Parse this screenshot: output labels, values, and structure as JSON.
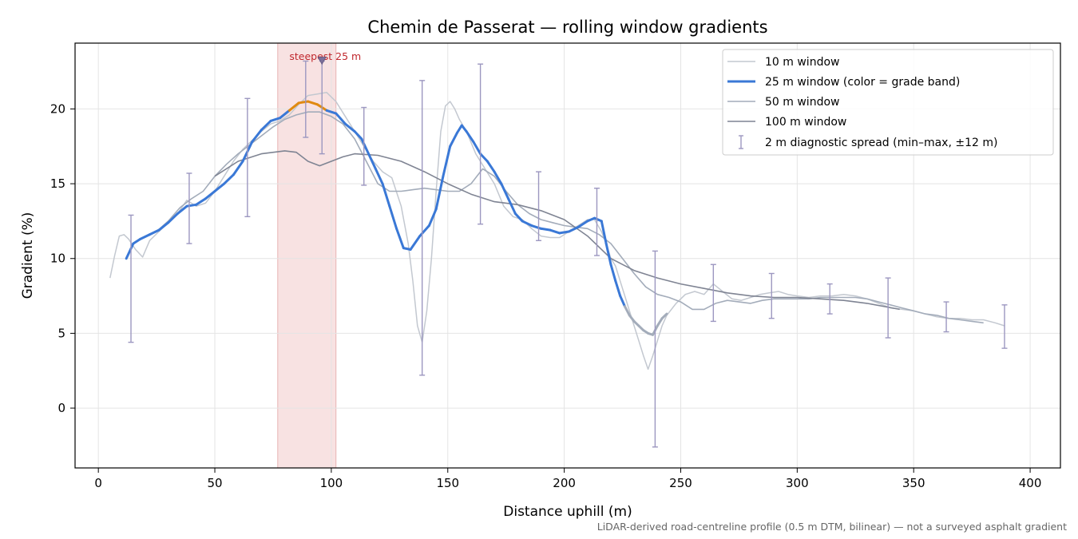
{
  "chart_data": {
    "type": "line",
    "title": "Chemin de Passerat — rolling window gradients",
    "xlabel": "Distance uphill (m)",
    "ylabel": "Gradient (%)",
    "xlim": [
      -10,
      413
    ],
    "ylim": [
      -4,
      24.4
    ],
    "x_ticks": [
      "0",
      "50",
      "100",
      "150",
      "200",
      "250",
      "300",
      "350",
      "400"
    ],
    "y_ticks": [
      "0",
      "5",
      "10",
      "15",
      "20"
    ],
    "grid": true,
    "legend_position": "top-right",
    "footnote": "LiDAR-derived road-centreline profile (0.5 m DTM, bilinear) — not a surveyed asphalt gradient",
    "steepest_window": {
      "label": "steepest 25 m",
      "x_start": 77,
      "x_end": 102,
      "marker_x": 96,
      "marker_y": 23.2
    },
    "colors": {
      "w10": "#c3c8d0",
      "w25": "#3a78d6",
      "w25_high": "#e08a10",
      "w50": "#a3acba",
      "w100": "#7f8493",
      "spread": "#9c97c0",
      "highlight": "#f6d8d8"
    },
    "series": [
      {
        "name": "10 m window",
        "x": [
          5,
          7,
          9,
          11,
          13,
          16,
          19,
          22,
          26,
          30,
          34,
          38,
          42,
          46,
          50,
          54,
          58,
          62,
          66,
          70,
          74,
          78,
          82,
          86,
          90,
          94,
          98,
          102,
          106,
          110,
          114,
          118,
          122,
          126,
          130,
          133,
          135,
          137,
          139,
          141,
          143,
          145,
          147,
          149,
          151,
          153,
          155,
          158,
          162,
          166,
          170,
          174,
          178,
          182,
          186,
          190,
          194,
          198,
          202,
          206,
          210,
          213,
          216,
          218,
          220,
          222,
          224,
          226,
          228,
          230,
          232,
          234,
          236,
          238,
          240,
          242,
          244,
          248,
          252,
          256,
          260,
          264,
          268,
          272,
          276,
          280,
          284,
          288,
          292,
          296,
          300,
          305,
          310,
          315,
          320,
          325,
          330,
          335,
          340,
          345,
          350,
          355,
          360,
          365,
          370,
          375,
          380,
          385,
          389
        ],
        "y": [
          8.7,
          10.2,
          11.5,
          11.6,
          11.3,
          10.6,
          10.1,
          11.2,
          11.8,
          12.4,
          13.0,
          13.9,
          13.5,
          13.7,
          14.5,
          15.5,
          16.5,
          17.3,
          17.9,
          18.5,
          19.0,
          19.2,
          19.6,
          20.3,
          20.9,
          21.0,
          21.1,
          20.5,
          19.5,
          18.5,
          17.5,
          16.5,
          15.8,
          15.4,
          13.5,
          11.0,
          8.5,
          5.5,
          4.4,
          6.5,
          10.0,
          14.5,
          18.5,
          20.2,
          20.5,
          20.0,
          19.3,
          18.5,
          17.0,
          16.0,
          15.0,
          13.5,
          12.8,
          12.6,
          12.0,
          11.5,
          11.4,
          11.4,
          11.8,
          12.2,
          12.6,
          12.6,
          11.8,
          11.0,
          10.0,
          9.5,
          8.5,
          7.5,
          6.5,
          5.5,
          4.5,
          3.5,
          2.6,
          3.5,
          4.5,
          5.5,
          6.2,
          7.0,
          7.6,
          7.8,
          7.6,
          8.3,
          7.8,
          7.3,
          7.2,
          7.4,
          7.6,
          7.7,
          7.8,
          7.6,
          7.5,
          7.4,
          7.5,
          7.5,
          7.6,
          7.5,
          7.3,
          7.0,
          6.7,
          6.6,
          6.5,
          6.3,
          6.1,
          6.0,
          6.0,
          5.9,
          5.9,
          5.7,
          5.5
        ]
      },
      {
        "name": "25 m window (color = grade band)",
        "x": [
          12,
          15,
          18,
          22,
          26,
          30,
          34,
          38,
          42,
          46,
          50,
          54,
          58,
          62,
          66,
          70,
          74,
          78,
          82,
          86,
          90,
          94,
          98,
          102,
          106,
          110,
          113,
          116,
          119,
          122,
          125,
          128,
          131,
          134,
          138,
          142,
          145,
          148,
          151,
          154,
          156,
          158,
          161,
          164,
          167,
          170,
          173,
          176,
          179,
          182,
          186,
          190,
          194,
          198,
          202,
          206,
          210,
          213,
          216,
          218,
          220,
          222,
          224,
          226,
          228,
          230,
          232,
          234,
          236,
          238,
          240,
          242,
          244
        ],
        "y": [
          10.0,
          11.0,
          11.3,
          11.6,
          11.9,
          12.4,
          13.0,
          13.5,
          13.6,
          14.0,
          14.5,
          15.0,
          15.6,
          16.5,
          17.8,
          18.6,
          19.2,
          19.4,
          19.9,
          20.4,
          20.5,
          20.3,
          19.9,
          19.7,
          19.0,
          18.5,
          18.0,
          17.0,
          16.0,
          15.0,
          13.5,
          12.0,
          10.7,
          10.6,
          11.5,
          12.2,
          13.3,
          15.5,
          17.5,
          18.4,
          18.9,
          18.5,
          17.8,
          17.0,
          16.5,
          15.8,
          15.0,
          14.0,
          13.0,
          12.5,
          12.2,
          12.0,
          11.9,
          11.7,
          11.8,
          12.1,
          12.5,
          12.7,
          12.5,
          11.0,
          9.6,
          8.5,
          7.5,
          6.8,
          6.2,
          5.8,
          5.5,
          5.2,
          5.0,
          4.9,
          5.5,
          6.0,
          6.3
        ]
      },
      {
        "name": "50 m window",
        "x": [
          25,
          30,
          35,
          40,
          45,
          50,
          55,
          60,
          65,
          70,
          75,
          80,
          85,
          90,
          95,
          100,
          105,
          110,
          115,
          120,
          125,
          130,
          135,
          140,
          145,
          150,
          155,
          160,
          165,
          170,
          175,
          180,
          185,
          190,
          195,
          200,
          205,
          210,
          215,
          220,
          225,
          230,
          235,
          240,
          245,
          250,
          255,
          260,
          265,
          270,
          275,
          280,
          285,
          290,
          295,
          300,
          305,
          310,
          315,
          320,
          325,
          330,
          335,
          340,
          345,
          350,
          355,
          360,
          365,
          370,
          375,
          380
        ],
        "y": [
          11.8,
          12.5,
          13.4,
          14.0,
          14.5,
          15.5,
          16.3,
          17.0,
          17.6,
          18.2,
          18.8,
          19.3,
          19.6,
          19.8,
          19.8,
          19.5,
          19.0,
          18.0,
          16.5,
          15.0,
          14.5,
          14.5,
          14.6,
          14.7,
          14.6,
          14.5,
          14.5,
          15.0,
          16.0,
          15.5,
          14.5,
          13.6,
          13.0,
          12.6,
          12.4,
          12.2,
          12.1,
          12.0,
          11.6,
          11.0,
          10.0,
          9.0,
          8.1,
          7.6,
          7.4,
          7.1,
          6.6,
          6.6,
          7.0,
          7.2,
          7.1,
          7.0,
          7.2,
          7.3,
          7.3,
          7.3,
          7.3,
          7.4,
          7.4,
          7.4,
          7.4,
          7.3,
          7.1,
          6.9,
          6.7,
          6.5,
          6.3,
          6.2,
          6.0,
          5.9,
          5.8,
          5.7
        ]
      },
      {
        "name": "100 m window",
        "x": [
          50,
          60,
          70,
          80,
          85,
          90,
          95,
          100,
          105,
          110,
          120,
          130,
          140,
          150,
          160,
          170,
          180,
          190,
          200,
          210,
          220,
          230,
          240,
          250,
          260,
          270,
          280,
          290,
          300,
          310,
          320,
          330,
          344
        ],
        "y": [
          15.5,
          16.5,
          17.0,
          17.2,
          17.1,
          16.5,
          16.2,
          16.5,
          16.8,
          17.0,
          16.9,
          16.5,
          15.8,
          15.0,
          14.3,
          13.8,
          13.6,
          13.2,
          12.6,
          11.5,
          10.0,
          9.2,
          8.7,
          8.3,
          8.0,
          7.7,
          7.5,
          7.4,
          7.4,
          7.3,
          7.2,
          7.0,
          6.6
        ]
      },
      {
        "name": "2 m diagnostic spread (min–max, ±12 m)",
        "x": [
          14,
          39,
          64,
          89,
          96,
          114,
          139,
          164,
          189,
          214,
          239,
          264,
          289,
          314,
          339,
          364,
          389
        ],
        "y": [
          10.0,
          13.6,
          18.0,
          20.3,
          20.0,
          17.0,
          12.5,
          16.5,
          12.4,
          12.5,
          5.0,
          7.4,
          7.3,
          7.3,
          6.9,
          6.1,
          5.8
        ],
        "min": [
          4.4,
          11.0,
          12.8,
          18.1,
          17.0,
          14.9,
          2.2,
          12.3,
          11.2,
          10.2,
          -2.6,
          5.8,
          6.0,
          6.3,
          4.7,
          5.1,
          4.0
        ],
        "max": [
          12.9,
          15.7,
          20.7,
          23.2,
          23.2,
          20.1,
          21.9,
          23.0,
          15.8,
          14.7,
          10.5,
          9.6,
          9.0,
          8.3,
          8.7,
          7.1,
          6.9
        ]
      }
    ]
  }
}
